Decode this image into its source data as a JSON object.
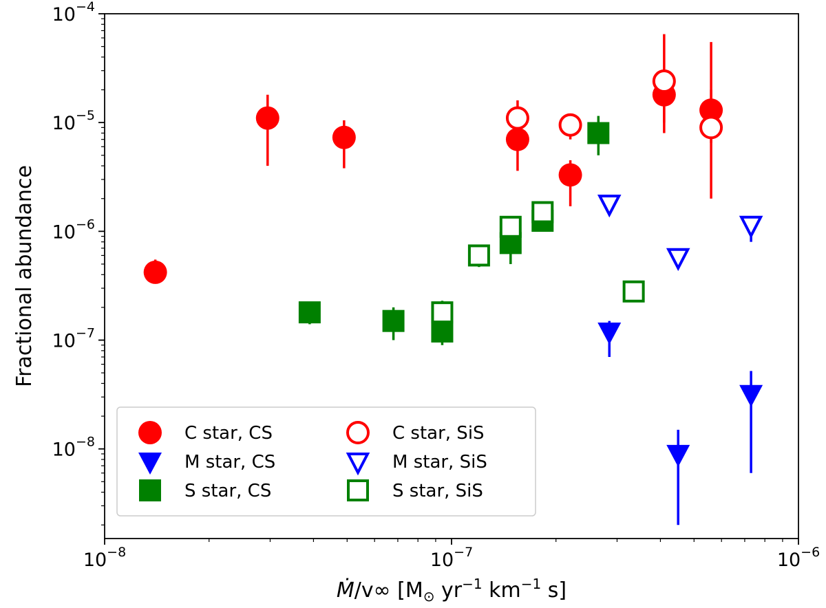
{
  "chart_data": {
    "type": "scatter",
    "xscale": "log",
    "yscale": "log",
    "xlim": [
      1e-08,
      1e-06
    ],
    "ylim": [
      1.5e-09,
      0.0001
    ],
    "xlabel": "Ṁ/v∞ [M⊙ yr⁻¹ km⁻¹ s]",
    "ylabel": "Fractional abundance",
    "xlabel_parts": {
      "mdot": "Ṁ",
      "rest": "/v∞ [M",
      "sun": "⊙",
      "yr": " yr",
      "exp1": "−1",
      "km": " km",
      "exp2": "−1",
      "s": " s]"
    },
    "x_ticks": [
      {
        "base": "10",
        "exp": "−8",
        "value": 1e-08
      },
      {
        "base": "10",
        "exp": "−7",
        "value": 1e-07
      },
      {
        "base": "10",
        "exp": "−6",
        "value": 1e-06
      }
    ],
    "y_ticks": [
      {
        "base": "10",
        "exp": "−8",
        "value": 1e-08
      },
      {
        "base": "10",
        "exp": "−7",
        "value": 1e-07
      },
      {
        "base": "10",
        "exp": "−6",
        "value": 1e-06
      },
      {
        "base": "10",
        "exp": "−5",
        "value": 1e-05
      },
      {
        "base": "10",
        "exp": "−4",
        "value": 0.0001
      }
    ],
    "legend_position": "lower-left",
    "series": [
      {
        "name": "C star, CS",
        "marker": "circle",
        "filled": true,
        "color": "#ff0000",
        "points": [
          {
            "x": 1.4e-08,
            "y": 4.2e-07,
            "ylo": 4.2e-07,
            "yhi": 5.5e-07
          },
          {
            "x": 2.95e-08,
            "y": 1.1e-05,
            "ylo": 4e-06,
            "yhi": 1.8e-05
          },
          {
            "x": 4.9e-08,
            "y": 7.3e-06,
            "ylo": 3.8e-06,
            "yhi": 1.05e-05
          },
          {
            "x": 1.55e-07,
            "y": 7e-06,
            "ylo": 3.6e-06,
            "yhi": 1e-05
          },
          {
            "x": 2.2e-07,
            "y": 3.3e-06,
            "ylo": 1.7e-06,
            "yhi": 4.5e-06
          },
          {
            "x": 4.1e-07,
            "y": 1.8e-05,
            "ylo": 8e-06,
            "yhi": 2.5e-05
          },
          {
            "x": 5.6e-07,
            "y": 1.3e-05,
            "ylo": 6.5e-06,
            "yhi": 2e-05
          }
        ]
      },
      {
        "name": "C star, SiS",
        "marker": "circle",
        "filled": false,
        "color": "#ff0000",
        "points": [
          {
            "x": 1.55e-07,
            "y": 1.1e-05,
            "ylo": 7e-06,
            "yhi": 1.6e-05
          },
          {
            "x": 2.2e-07,
            "y": 9.5e-06,
            "ylo": 7e-06,
            "yhi": 1e-05
          },
          {
            "x": 4.1e-07,
            "y": 2.4e-05,
            "ylo": 1e-05,
            "yhi": 6.5e-05
          },
          {
            "x": 5.6e-07,
            "y": 9e-06,
            "ylo": 2e-06,
            "yhi": 5.5e-05
          }
        ]
      },
      {
        "name": "M star, CS",
        "marker": "triangle-down",
        "filled": true,
        "color": "#0000ff",
        "points": [
          {
            "x": 2.85e-07,
            "y": 1.2e-07,
            "ylo": 7e-08,
            "yhi": 1.5e-07
          },
          {
            "x": 4.5e-07,
            "y": 9e-09,
            "ylo": 2e-09,
            "yhi": 1.5e-08
          },
          {
            "x": 7.3e-07,
            "y": 3.2e-08,
            "ylo": 6e-09,
            "yhi": 5.2e-08
          }
        ]
      },
      {
        "name": "M star, SiS",
        "marker": "triangle-down",
        "filled": false,
        "color": "#0000ff",
        "points": [
          {
            "x": 2.85e-07,
            "y": 1.8e-06,
            "ylo": 1.8e-06,
            "yhi": 1.8e-06
          },
          {
            "x": 4.5e-07,
            "y": 5.8e-07,
            "ylo": 5.8e-07,
            "yhi": 5.8e-07
          },
          {
            "x": 7.3e-07,
            "y": 1.15e-06,
            "ylo": 8e-07,
            "yhi": 1.15e-06
          }
        ]
      },
      {
        "name": "S star, CS",
        "marker": "square",
        "filled": true,
        "color": "#008000",
        "points": [
          {
            "x": 3.9e-08,
            "y": 1.8e-07,
            "ylo": 1.4e-07,
            "yhi": 2e-07
          },
          {
            "x": 6.8e-08,
            "y": 1.5e-07,
            "ylo": 1e-07,
            "yhi": 2e-07
          },
          {
            "x": 9.4e-08,
            "y": 1.2e-07,
            "ylo": 9e-08,
            "yhi": 2e-07
          },
          {
            "x": 1.48e-07,
            "y": 7.8e-07,
            "ylo": 5e-07,
            "yhi": 1e-06
          },
          {
            "x": 1.83e-07,
            "y": 1.25e-06,
            "ylo": 1e-06,
            "yhi": 1.5e-06
          },
          {
            "x": 2.65e-07,
            "y": 8e-06,
            "ylo": 5e-06,
            "yhi": 1.15e-05
          }
        ]
      },
      {
        "name": "S star, SiS",
        "marker": "square",
        "filled": false,
        "color": "#008000",
        "points": [
          {
            "x": 9.4e-08,
            "y": 1.8e-07,
            "ylo": 1.5e-07,
            "yhi": 2.3e-07
          },
          {
            "x": 1.2e-07,
            "y": 6e-07,
            "ylo": 4.7e-07,
            "yhi": 6e-07
          },
          {
            "x": 1.48e-07,
            "y": 1.1e-06,
            "ylo": 1.1e-06,
            "yhi": 1.1e-06
          },
          {
            "x": 1.83e-07,
            "y": 1.5e-06,
            "ylo": 1.5e-06,
            "yhi": 1.5e-06
          },
          {
            "x": 3.35e-07,
            "y": 2.8e-07,
            "ylo": 2.8e-07,
            "yhi": 2.8e-07
          }
        ]
      }
    ]
  }
}
